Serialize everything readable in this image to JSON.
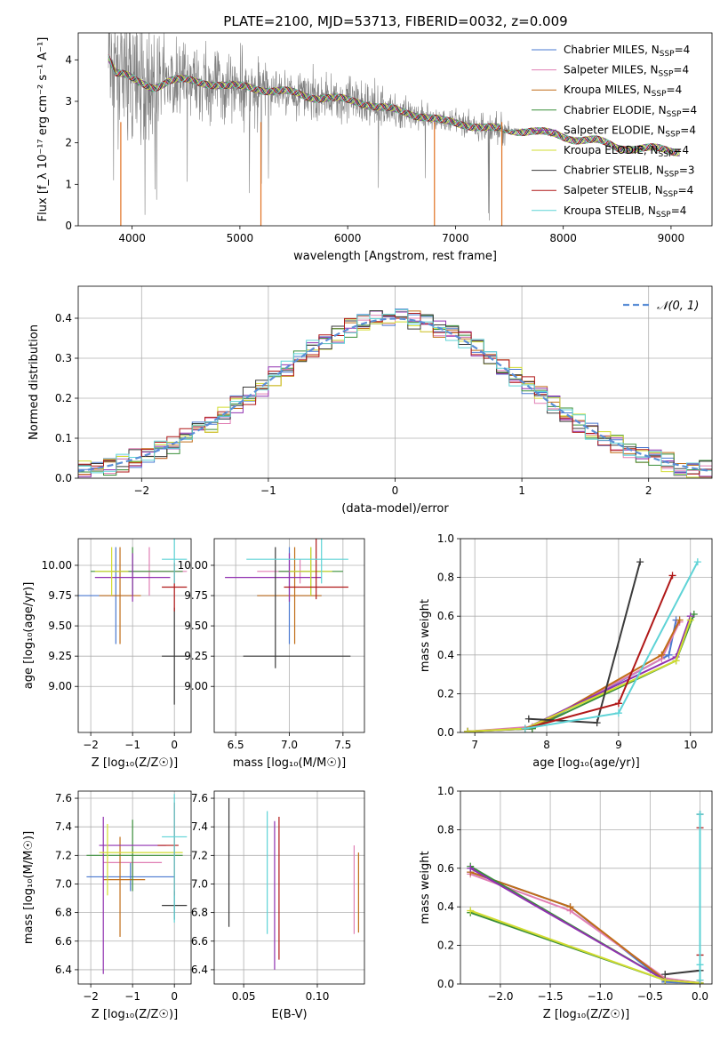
{
  "figure": {
    "title": "PLATE=2100, MJD=53713, FIBERID=0032, z=0.009"
  },
  "models": [
    {
      "name": "Chabrier MILES",
      "nssp": "4",
      "color": "#4a78d0"
    },
    {
      "name": "Salpeter MILES",
      "nssp": "4",
      "color": "#e07fb4"
    },
    {
      "name": "Kroupa MILES",
      "nssp": "4",
      "color": "#c06d18"
    },
    {
      "name": "Chabrier ELODIE",
      "nssp": "4",
      "color": "#3a8f3a"
    },
    {
      "name": "Salpeter ELODIE",
      "nssp": "4",
      "color": "#9030b0"
    },
    {
      "name": "Kroupa ELODIE",
      "nssp": "4",
      "color": "#d2dc30"
    },
    {
      "name": "Chabrier STELIB",
      "nssp": "3",
      "color": "#3a3a3a"
    },
    {
      "name": "Salpeter STELIB",
      "nssp": "4",
      "color": "#b01818"
    },
    {
      "name": "Kroupa STELIB",
      "nssp": "4",
      "color": "#5ed3d6"
    }
  ],
  "chart_data": [
    {
      "id": "spectrum",
      "type": "line",
      "xlabel": "wavelength [Angstrom, rest frame]",
      "ylabel": "Flux [f_λ 10⁻¹⁷ erg cm⁻² s⁻¹ A⁻¹]",
      "xlim": [
        3500,
        9380
      ],
      "ylim": [
        0,
        4.65
      ],
      "xticks": [
        4000,
        5000,
        6000,
        7000,
        8000,
        9000
      ],
      "yticks": [
        0,
        1,
        2,
        3,
        4
      ],
      "data_color": "#808080",
      "model_x": [
        3780,
        3850,
        3950,
        4050,
        4200,
        4350,
        4500,
        4700,
        4900,
        5100,
        5300,
        5500,
        5700,
        5900,
        6100,
        6300,
        6500,
        6700,
        6900,
        7100,
        7300,
        7500,
        7700,
        7900,
        8100,
        8300,
        8500,
        8700,
        8900,
        9100
      ],
      "model_y": [
        4.1,
        3.7,
        3.6,
        3.45,
        3.35,
        3.5,
        3.5,
        3.45,
        3.35,
        3.35,
        3.25,
        3.2,
        3.1,
        3.05,
        3.0,
        2.85,
        2.75,
        2.65,
        2.5,
        2.45,
        2.35,
        2.3,
        2.3,
        2.2,
        2.1,
        2.05,
        1.9,
        1.85,
        1.85,
        1.8
      ],
      "grid": false,
      "legend": "top-right"
    },
    {
      "id": "residuals",
      "type": "histogram",
      "xlabel": "(data-model)/error",
      "ylabel": "Normed distribution",
      "xlim": [
        -2.5,
        2.5
      ],
      "ylim": [
        0,
        0.48
      ],
      "xticks": [
        -2,
        -1,
        0,
        1,
        2
      ],
      "yticks": [
        0.0,
        0.1,
        0.2,
        0.3,
        0.4
      ],
      "bin_edges_start": -2.5,
      "bin_width": 0.1,
      "reference": {
        "label": "𝒩(0, 1)",
        "mean": 0,
        "sigma": 1,
        "color": "#5b8ed6"
      },
      "grid": true,
      "legend": "top-right"
    },
    {
      "id": "age_vs_Z",
      "type": "errorbar",
      "xlabel": "Z [log₁₀(Z/Z☉)]",
      "ylabel": "age  [log₁₀(age/yr)]",
      "xlim": [
        -2.3,
        0.4
      ],
      "ylim": [
        8.62,
        10.22
      ],
      "xticks": [
        -2,
        -1,
        0
      ],
      "yticks": [
        9.0,
        9.25,
        9.5,
        9.75,
        10.0
      ],
      "points": [
        {
          "m": 0,
          "x": -1.4,
          "xerr": [
            0.9,
            0.4
          ],
          "y": 9.75,
          "yerr": [
            0.4,
            0.4
          ]
        },
        {
          "m": 1,
          "x": -0.6,
          "xerr": [
            0.9,
            0.9
          ],
          "y": 9.95,
          "yerr": [
            0.2,
            0.2
          ]
        },
        {
          "m": 2,
          "x": -1.3,
          "xerr": [
            0.5,
            0.5
          ],
          "y": 9.75,
          "yerr": [
            0.4,
            0.4
          ]
        },
        {
          "m": 3,
          "x": -1.0,
          "xerr": [
            1.0,
            1.2
          ],
          "y": 9.95,
          "yerr": [
            0.2,
            0.2
          ]
        },
        {
          "m": 4,
          "x": -1.0,
          "xerr": [
            0.9,
            0.9
          ],
          "y": 9.9,
          "yerr": [
            0.2,
            0.2
          ]
        },
        {
          "m": 5,
          "x": -1.5,
          "xerr": [
            0.4,
            0.4
          ],
          "y": 9.95,
          "yerr": [
            0.2,
            0.2
          ]
        },
        {
          "m": 6,
          "x": 0.0,
          "xerr": [
            0.3,
            0.3
          ],
          "y": 9.25,
          "yerr": [
            0.4,
            0.4
          ]
        },
        {
          "m": 7,
          "x": 0.0,
          "xerr": [
            0.3,
            0.3
          ],
          "y": 9.82,
          "yerr": [
            0.2,
            0.2
          ]
        },
        {
          "m": 8,
          "x": 0.0,
          "xerr": [
            0.3,
            0.3
          ],
          "y": 10.05,
          "yerr": [
            0.2,
            1.15
          ]
        }
      ],
      "grid": true
    },
    {
      "id": "age_vs_mass",
      "type": "errorbar",
      "xlabel": "mass [log₁₀(M/M☉)]",
      "ylabel": "",
      "xlim": [
        6.3,
        7.7
      ],
      "ylim": [
        8.62,
        10.22
      ],
      "xticks": [
        6.5,
        7.0,
        7.5
      ],
      "yticks": [
        9.0,
        9.25,
        9.5,
        9.75,
        10.0
      ],
      "points": [
        {
          "m": 0,
          "x": 7.0,
          "xerr": [
            0.3,
            0.3
          ],
          "y": 9.75,
          "yerr": [
            0.4,
            0.4
          ]
        },
        {
          "m": 1,
          "x": 7.1,
          "xerr": [
            0.4,
            0.2
          ],
          "y": 9.95,
          "yerr": [
            0.1,
            0.1
          ]
        },
        {
          "m": 2,
          "x": 7.05,
          "xerr": [
            0.35,
            0.25
          ],
          "y": 9.75,
          "yerr": [
            0.4,
            0.4
          ]
        },
        {
          "m": 3,
          "x": 7.2,
          "xerr": [
            0.3,
            0.3
          ],
          "y": 9.95,
          "yerr": [
            0.2,
            0.2
          ]
        },
        {
          "m": 4,
          "x": 7.0,
          "xerr": [
            0.6,
            0.3
          ],
          "y": 9.9,
          "yerr": [
            0.2,
            0.2
          ]
        },
        {
          "m": 5,
          "x": 7.2,
          "xerr": [
            0.2,
            0.2
          ],
          "y": 9.95,
          "yerr": [
            0.2,
            0.2
          ]
        },
        {
          "m": 6,
          "x": 6.87,
          "xerr": [
            0.3,
            0.7
          ],
          "y": 9.25,
          "yerr": [
            0.1,
            0.9
          ]
        },
        {
          "m": 7,
          "x": 7.25,
          "xerr": [
            0.3,
            0.3
          ],
          "y": 9.82,
          "yerr": [
            0.1,
            0.95
          ]
        },
        {
          "m": 8,
          "x": 7.3,
          "xerr": [
            0.7,
            0.25
          ],
          "y": 10.05,
          "yerr": [
            0.2,
            1.15
          ]
        }
      ],
      "grid": true
    },
    {
      "id": "weight_vs_age",
      "type": "line",
      "xlabel": "age  [log₁₀(age/yr)]",
      "ylabel": "mass weight",
      "xlim": [
        6.8,
        10.3
      ],
      "ylim": [
        0,
        1
      ],
      "xticks": [
        7,
        8,
        9,
        10
      ],
      "yticks": [
        0.0,
        0.2,
        0.4,
        0.6,
        0.8,
        1.0
      ],
      "series": [
        {
          "m": 0,
          "x": [
            6.9,
            7.8,
            9.7,
            9.8
          ],
          "y": [
            0.005,
            0.02,
            0.4,
            0.58
          ]
        },
        {
          "m": 1,
          "x": [
            6.9,
            7.8,
            9.6,
            9.85
          ],
          "y": [
            0.005,
            0.03,
            0.38,
            0.57
          ]
        },
        {
          "m": 2,
          "x": [
            6.9,
            7.8,
            9.6,
            9.85
          ],
          "y": [
            0.005,
            0.02,
            0.4,
            0.58
          ]
        },
        {
          "m": 3,
          "x": [
            6.9,
            7.8,
            9.8,
            10.05
          ],
          "y": [
            0.005,
            0.02,
            0.37,
            0.61
          ]
        },
        {
          "m": 4,
          "x": [
            6.9,
            7.7,
            9.8,
            10.0
          ],
          "y": [
            0.005,
            0.02,
            0.39,
            0.6
          ]
        },
        {
          "m": 5,
          "x": [
            6.9,
            7.7,
            9.8,
            10.0
          ],
          "y": [
            0.005,
            0.02,
            0.37,
            0.58
          ]
        },
        {
          "m": 6,
          "x": [
            7.75,
            8.7,
            9.3
          ],
          "y": [
            0.07,
            0.05,
            0.88
          ]
        },
        {
          "m": 7,
          "x": [
            7.7,
            9.0,
            9.75
          ],
          "y": [
            0.02,
            0.15,
            0.81
          ]
        },
        {
          "m": 8,
          "x": [
            7.7,
            9.0,
            10.1
          ],
          "y": [
            0.02,
            0.1,
            0.88
          ]
        }
      ],
      "grid": true
    },
    {
      "id": "mass_vs_Z",
      "type": "errorbar",
      "xlabel": "Z [log₁₀(Z/Z☉)]",
      "ylabel": "mass [log₁₀(M/M☉)]",
      "xlim": [
        -2.3,
        0.4
      ],
      "ylim": [
        6.3,
        7.65
      ],
      "xticks": [
        -2,
        -1,
        0
      ],
      "yticks": [
        6.4,
        6.6,
        6.8,
        7.0,
        7.2,
        7.4,
        7.6
      ],
      "points": [
        {
          "m": 0,
          "x": -1.05,
          "xerr": [
            1.05,
            1.05
          ],
          "y": 7.05,
          "yerr": [
            0.1,
            0.1
          ]
        },
        {
          "m": 1,
          "x": -1.0,
          "xerr": [
            0.7,
            0.7
          ],
          "y": 7.15,
          "yerr": [
            0.1,
            0.1
          ]
        },
        {
          "m": 2,
          "x": -1.3,
          "xerr": [
            0.4,
            0.6
          ],
          "y": 7.03,
          "yerr": [
            0.4,
            0.3
          ]
        },
        {
          "m": 3,
          "x": -1.0,
          "xerr": [
            1.1,
            1.2
          ],
          "y": 7.2,
          "yerr": [
            0.25,
            0.25
          ]
        },
        {
          "m": 4,
          "x": -1.7,
          "xerr": [
            0.1,
            1.5
          ],
          "y": 7.27,
          "yerr": [
            0.9,
            0.2
          ]
        },
        {
          "m": 5,
          "x": -1.6,
          "xerr": [
            0.2,
            1.8
          ],
          "y": 7.22,
          "yerr": [
            0.3,
            0.2
          ]
        },
        {
          "m": 6,
          "x": 0.0,
          "xerr": [
            0.3,
            0.3
          ],
          "y": 6.85,
          "yerr": [
            0.1,
            0.1
          ]
        },
        {
          "m": 7,
          "x": 0.0,
          "xerr": [
            0.4,
            0.1
          ],
          "y": 7.27,
          "yerr": [
            0.35,
            0.3
          ]
        },
        {
          "m": 8,
          "x": 0.0,
          "xerr": [
            0.3,
            0.3
          ],
          "y": 7.33,
          "yerr": [
            0.6,
            0.3
          ]
        }
      ],
      "grid": true
    },
    {
      "id": "mass_vs_ebv",
      "type": "errorbar",
      "xlabel": "E(B-V)",
      "ylabel": "",
      "xlim": [
        0.03,
        0.132
      ],
      "ylim": [
        6.3,
        7.65
      ],
      "xticks": [
        0.05,
        0.1
      ],
      "yticks": [
        6.4,
        6.6,
        6.8,
        7.0,
        7.2,
        7.4,
        7.6
      ],
      "points": [
        {
          "m": 6,
          "x": 0.04,
          "y": 7.15,
          "yerr": [
            0.45,
            0.45
          ]
        },
        {
          "m": 8,
          "x": 0.066,
          "y": 7.08,
          "yerr": [
            0.43,
            0.43
          ]
        },
        {
          "m": 4,
          "x": 0.071,
          "y": 6.97,
          "yerr": [
            0.57,
            0.47
          ]
        },
        {
          "m": 7,
          "x": 0.074,
          "y": 6.98,
          "yerr": [
            0.51,
            0.49
          ]
        },
        {
          "m": 1,
          "x": 0.125,
          "y": 6.95,
          "yerr": [
            0.3,
            0.32
          ]
        },
        {
          "m": 2,
          "x": 0.128,
          "y": 6.94,
          "yerr": [
            0.28,
            0.28
          ]
        }
      ],
      "grid": true
    },
    {
      "id": "weight_vs_Z",
      "type": "line",
      "xlabel": "Z [log₁₀(Z/Z☉)]",
      "ylabel": "mass weight",
      "xlim": [
        -2.4,
        0.12
      ],
      "ylim": [
        0,
        1
      ],
      "xticks": [
        -2.0,
        -1.5,
        -1.0,
        -0.5,
        0.0
      ],
      "yticks": [
        0.0,
        0.2,
        0.4,
        0.6,
        0.8,
        1.0
      ],
      "series": [
        {
          "m": 0,
          "x": [
            -2.3,
            -1.3,
            -0.35,
            0.0
          ],
          "y": [
            0.58,
            0.4,
            0.01,
            0.005
          ]
        },
        {
          "m": 1,
          "x": [
            -2.3,
            -1.3,
            -0.35,
            0.0
          ],
          "y": [
            0.57,
            0.38,
            0.03,
            0.005
          ]
        },
        {
          "m": 2,
          "x": [
            -2.3,
            -1.3,
            -0.35,
            0.0
          ],
          "y": [
            0.58,
            0.4,
            0.02,
            0.005
          ]
        },
        {
          "m": 3,
          "x": [
            -2.3,
            -0.35,
            0.0
          ],
          "y": [
            0.61,
            0.02,
            0.005
          ]
        },
        {
          "m": 3,
          "x": [
            -2.3,
            -0.35,
            0.0
          ],
          "y": [
            0.37,
            0.02,
            0.005
          ]
        },
        {
          "m": 4,
          "x": [
            -2.3,
            -0.35,
            0.0
          ],
          "y": [
            0.6,
            0.02,
            0.005
          ]
        },
        {
          "m": 5,
          "x": [
            -2.3,
            -0.35,
            0.0
          ],
          "y": [
            0.38,
            0.02,
            0.005
          ]
        },
        {
          "m": 6,
          "x": [
            -0.35,
            0.0,
            0.0
          ],
          "y": [
            0.05,
            0.07,
            0.88
          ]
        },
        {
          "m": 7,
          "x": [
            0.0,
            0.0,
            0.0
          ],
          "y": [
            0.02,
            0.15,
            0.81
          ]
        },
        {
          "m": 8,
          "x": [
            0.0,
            0.0,
            0.0
          ],
          "y": [
            0.02,
            0.1,
            0.88
          ]
        }
      ],
      "grid": true
    }
  ]
}
